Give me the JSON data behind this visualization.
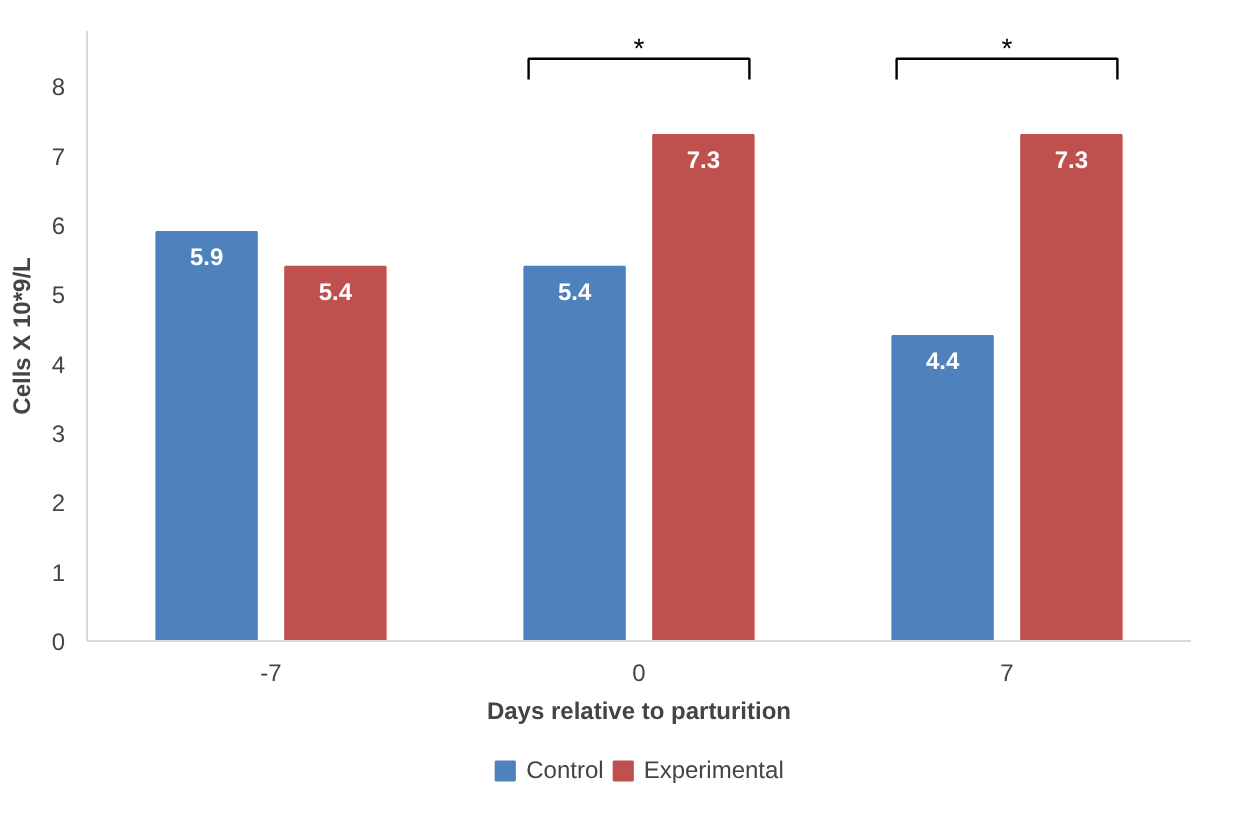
{
  "chart_data": {
    "type": "bar",
    "xlabel": "Days relative to parturition",
    "ylabel": "Cells X 10*9/L",
    "categories": [
      "-7",
      "0",
      "7"
    ],
    "series": [
      {
        "name": "Control",
        "color": "#4f81bd",
        "values": [
          5.9,
          5.4,
          4.4
        ]
      },
      {
        "name": "Experimental",
        "color": "#c0504d",
        "values": [
          5.4,
          7.3,
          7.3
        ]
      }
    ],
    "ylim": [
      0,
      8.8
    ],
    "yticks": [
      0,
      1,
      2,
      3,
      4,
      5,
      6,
      7,
      8
    ],
    "grid": false,
    "legend": "bottom",
    "data_labels": true,
    "annotations": [
      "*",
      "*"
    ]
  }
}
